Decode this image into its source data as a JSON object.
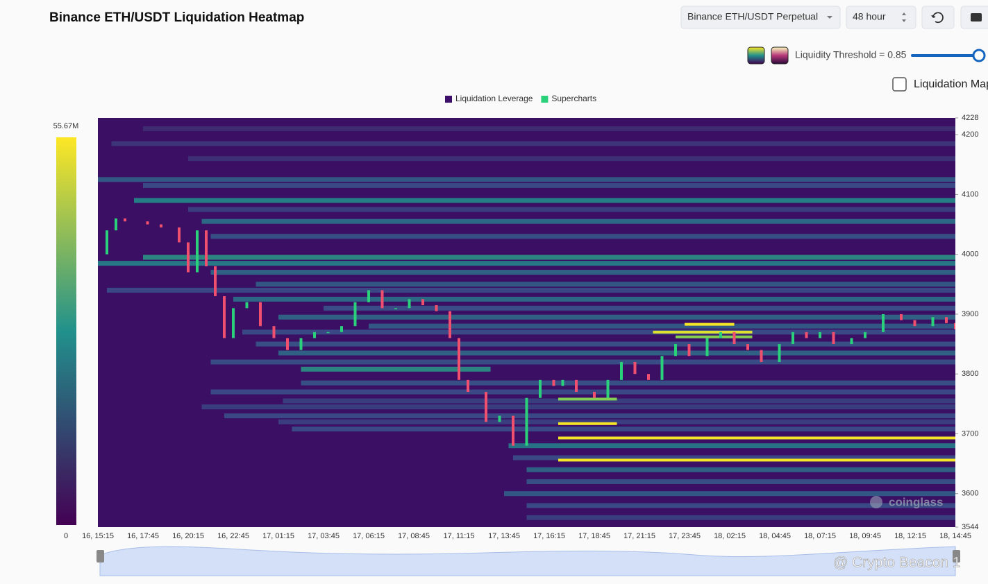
{
  "header": {
    "title": "Binance ETH/USDT Liquidation Heatmap",
    "pair_select": "Binance ETH/USDT Perpetual",
    "range_select": "48 hour",
    "threshold": "Liquidity Threshold = 0.85",
    "map_toggle": "Liquidation Map"
  },
  "chart_data": {
    "type": "heatmap",
    "legend": [
      {
        "name": "Liquidation Leverage",
        "color": "#3d0f6b"
      },
      {
        "name": "Supercharts",
        "color": "#2bd07a"
      }
    ],
    "categories": [
      "16, 15:15",
      "16, 17:45",
      "16, 20:15",
      "16, 22:45",
      "17, 01:15",
      "17, 03:45",
      "17, 06:15",
      "17, 08:45",
      "17, 11:15",
      "17, 13:45",
      "17, 16:15",
      "17, 18:45",
      "17, 21:15",
      "17, 23:45",
      "18, 02:15",
      "18, 04:45",
      "18, 07:15",
      "18, 09:45",
      "18, 12:15",
      "18, 14:45"
    ],
    "ylim": [
      3544,
      4228
    ],
    "yticks": [
      3544,
      3600,
      3700,
      3800,
      3900,
      4000,
      4100,
      4200,
      4228
    ],
    "zlim": [
      0,
      55.67
    ],
    "zticks": [
      0,
      {
        "value": 55.67,
        "label": "55.67M"
      }
    ],
    "bands": [
      {
        "price": 4210,
        "start": 1,
        "end": 19,
        "value": 8
      },
      {
        "price": 4185,
        "start": 0.3,
        "end": 19,
        "value": 10
      },
      {
        "price": 4160,
        "start": 2,
        "end": 19,
        "value": 9
      },
      {
        "price": 4125,
        "start": 0,
        "end": 19,
        "value": 18
      },
      {
        "price": 4115,
        "start": 1,
        "end": 19,
        "value": 14
      },
      {
        "price": 4090,
        "start": 0.8,
        "end": 19,
        "value": 28
      },
      {
        "price": 4075,
        "start": 2,
        "end": 19,
        "value": 12
      },
      {
        "price": 4055,
        "start": 2.3,
        "end": 19,
        "value": 22
      },
      {
        "price": 4030,
        "start": 2.5,
        "end": 19,
        "value": 16
      },
      {
        "price": 3995,
        "start": 1,
        "end": 19,
        "value": 30
      },
      {
        "price": 3985,
        "start": 0,
        "end": 19,
        "value": 26
      },
      {
        "price": 3970,
        "start": 2.5,
        "end": 19,
        "value": 20
      },
      {
        "price": 3950,
        "start": 3.5,
        "end": 19,
        "value": 18
      },
      {
        "price": 3940,
        "start": 0.2,
        "end": 19,
        "value": 14
      },
      {
        "price": 3925,
        "start": 3,
        "end": 19,
        "value": 22
      },
      {
        "price": 3910,
        "start": 5,
        "end": 19,
        "value": 15
      },
      {
        "price": 3895,
        "start": 4,
        "end": 19,
        "value": 20
      },
      {
        "price": 3880,
        "start": 6,
        "end": 19,
        "value": 18
      },
      {
        "price": 3870,
        "start": 3.2,
        "end": 19,
        "value": 14
      },
      {
        "price": 3850,
        "start": 3.5,
        "end": 19,
        "value": 16
      },
      {
        "price": 3835,
        "start": 4,
        "end": 19,
        "value": 20
      },
      {
        "price": 3820,
        "start": 2.5,
        "end": 19,
        "value": 15
      },
      {
        "price": 3785,
        "start": 4.5,
        "end": 19,
        "value": 16
      },
      {
        "price": 3770,
        "start": 2.5,
        "end": 19,
        "value": 14
      },
      {
        "price": 3755,
        "start": 4.1,
        "end": 19,
        "value": 12
      },
      {
        "price": 3745,
        "start": 2.3,
        "end": 19,
        "value": 12
      },
      {
        "price": 3730,
        "start": 2.8,
        "end": 19,
        "value": 14
      },
      {
        "price": 3720,
        "start": 4,
        "end": 19,
        "value": 12
      },
      {
        "price": 3708,
        "start": 4.3,
        "end": 19,
        "value": 14
      },
      {
        "price": 3680,
        "start": 9.1,
        "end": 19,
        "value": 25
      },
      {
        "price": 3660,
        "start": 9.2,
        "end": 19,
        "value": 14
      },
      {
        "price": 3640,
        "start": 9.5,
        "end": 19,
        "value": 20
      },
      {
        "price": 3620,
        "start": 9.5,
        "end": 19,
        "value": 16
      },
      {
        "price": 3600,
        "start": 9,
        "end": 19,
        "value": 18
      },
      {
        "price": 3580,
        "start": 9.5,
        "end": 19,
        "value": 14
      },
      {
        "price": 3560,
        "start": 9.5,
        "end": 19,
        "value": 12
      },
      {
        "price": 3808,
        "start": 4.5,
        "end": 8.7,
        "value": 30
      },
      {
        "price": 3883,
        "start": 13,
        "end": 14.1,
        "value": 55
      },
      {
        "price": 3870,
        "start": 12.3,
        "end": 14.5,
        "value": 53
      },
      {
        "price": 3862,
        "start": 12.8,
        "end": 14.5,
        "value": 45
      },
      {
        "price": 3758,
        "start": 10.2,
        "end": 11.5,
        "value": 45
      },
      {
        "price": 3717,
        "start": 10.2,
        "end": 11.5,
        "value": 55
      },
      {
        "price": 3693,
        "start": 10.2,
        "end": 19,
        "value": 55
      },
      {
        "price": 3656,
        "start": 10.2,
        "end": 19,
        "value": 55
      }
    ],
    "candles": {
      "x": [
        0,
        0.2,
        0.4,
        0.6,
        1.1,
        1.4,
        1.8,
        2,
        2.2,
        2.4,
        2.6,
        2.8,
        3,
        3.3,
        3.6,
        3.9,
        4.2,
        4.5,
        4.8,
        5.1,
        5.4,
        5.7,
        6,
        6.3,
        6.6,
        6.9,
        7.2,
        7.5,
        7.8,
        8,
        8.2,
        8.6,
        8.9,
        9.2,
        9.5,
        9.8,
        10.1,
        10.3,
        10.6,
        11,
        11.3,
        11.6,
        11.9,
        12.2,
        12.5,
        12.8,
        13.1,
        13.5,
        13.8,
        14.1,
        14.4,
        14.7,
        15.1,
        15.4,
        15.7,
        16,
        16.3,
        16.7,
        17,
        17.4,
        17.8,
        18.1,
        18.5,
        18.8,
        19
      ],
      "close": [
        4000,
        4040,
        4060,
        4055,
        4050,
        4045,
        4020,
        3970,
        4040,
        3980,
        3930,
        3860,
        3910,
        3920,
        3880,
        3860,
        3840,
        3860,
        3870,
        3870,
        3880,
        3920,
        3940,
        3910,
        3910,
        3925,
        3915,
        3905,
        3860,
        3790,
        3770,
        3720,
        3730,
        3680,
        3760,
        3790,
        3780,
        3790,
        3770,
        3760,
        3790,
        3820,
        3800,
        3790,
        3830,
        3850,
        3830,
        3860,
        3870,
        3850,
        3840,
        3820,
        3850,
        3870,
        3860,
        3870,
        3850,
        3860,
        3870,
        3900,
        3890,
        3880,
        3895,
        3885,
        3875
      ]
    },
    "watermark": "coinglass",
    "credit": "@ Crypto Beacon 1"
  }
}
